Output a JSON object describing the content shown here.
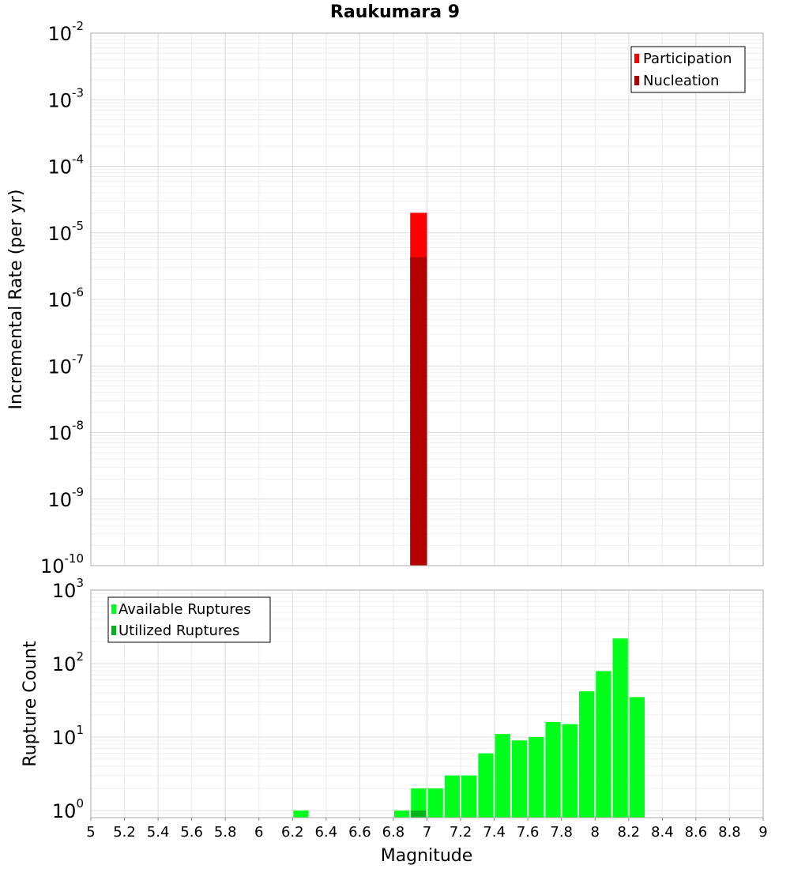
{
  "chart_data": [
    {
      "type": "bar",
      "title": "Raukumara 9",
      "ylabel": "Incremental Rate (per yr)",
      "y_scale": "log",
      "ylim": [
        1e-10,
        0.01
      ],
      "xlim": [
        5,
        9
      ],
      "bin_width": 0.1,
      "grid": true,
      "legend_position": "top-right",
      "series": [
        {
          "name": "Participation",
          "color": "#ff0000",
          "points": [
            {
              "x": 6.95,
              "y": 2e-05
            }
          ]
        },
        {
          "name": "Nucleation",
          "color": "#b30000",
          "points": [
            {
              "x": 6.95,
              "y": 4.3e-06
            }
          ]
        }
      ]
    },
    {
      "type": "bar",
      "xlabel": "Magnitude",
      "ylabel": "Rupture Count",
      "y_scale": "log",
      "ylim": [
        0.8,
        1000
      ],
      "xlim": [
        5,
        9
      ],
      "bin_width": 0.1,
      "grid": true,
      "legend_position": "top-left",
      "x_ticks": [
        "5",
        "5.2",
        "5.4",
        "5.6",
        "5.8",
        "6",
        "6.2",
        "6.4",
        "6.6",
        "6.8",
        "7",
        "7.2",
        "7.4",
        "7.6",
        "7.8",
        "8",
        "8.2",
        "8.4",
        "8.6",
        "8.8",
        "9"
      ],
      "series": [
        {
          "name": "Available Ruptures",
          "color": "#00ff1a",
          "points": [
            {
              "x": 6.25,
              "y": 1
            },
            {
              "x": 6.85,
              "y": 1
            },
            {
              "x": 6.95,
              "y": 2
            },
            {
              "x": 7.05,
              "y": 2
            },
            {
              "x": 7.15,
              "y": 3
            },
            {
              "x": 7.25,
              "y": 3
            },
            {
              "x": 7.35,
              "y": 6
            },
            {
              "x": 7.45,
              "y": 11
            },
            {
              "x": 7.55,
              "y": 9
            },
            {
              "x": 7.65,
              "y": 10
            },
            {
              "x": 7.75,
              "y": 16
            },
            {
              "x": 7.85,
              "y": 15
            },
            {
              "x": 7.95,
              "y": 42
            },
            {
              "x": 8.05,
              "y": 79
            },
            {
              "x": 8.15,
              "y": 220
            },
            {
              "x": 8.25,
              "y": 35
            }
          ]
        },
        {
          "name": "Utilized Ruptures",
          "color": "#00b31a",
          "points": [
            {
              "x": 6.95,
              "y": 1
            }
          ]
        }
      ]
    }
  ]
}
